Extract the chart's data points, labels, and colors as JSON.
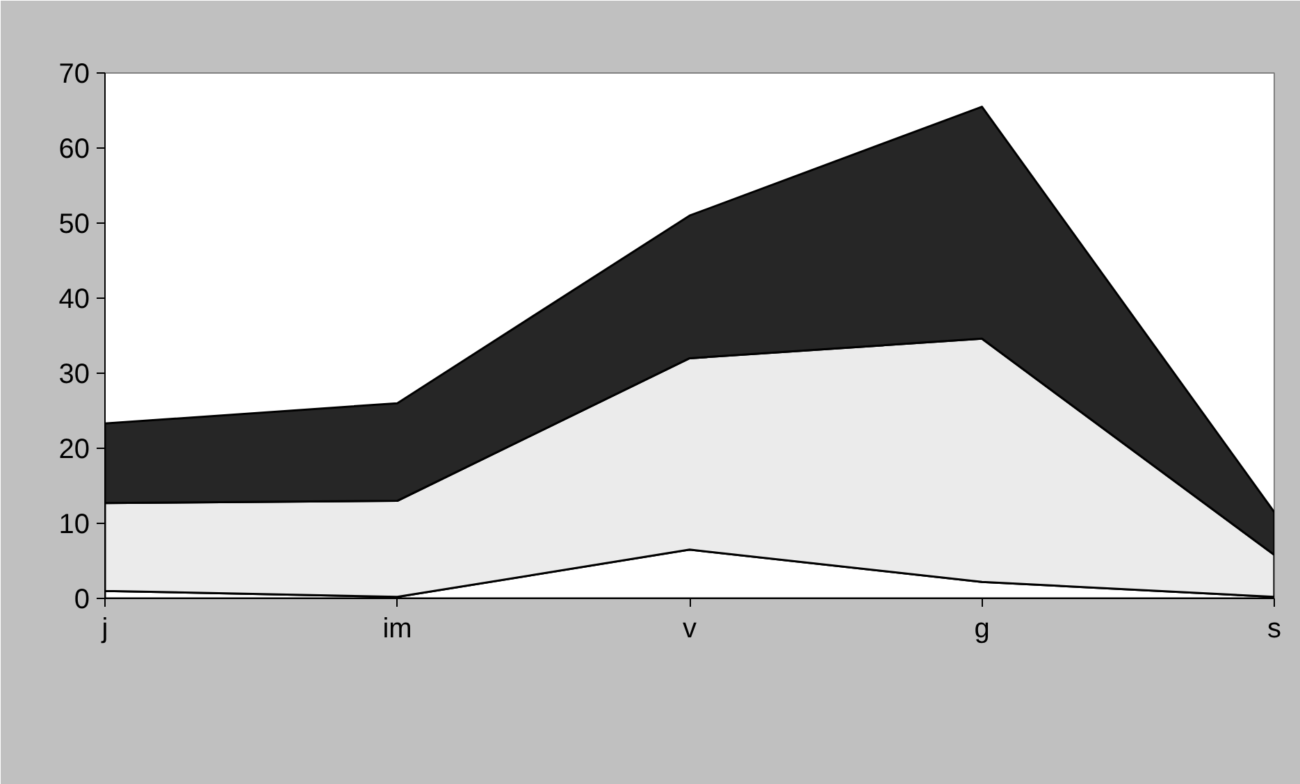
{
  "chart_data": {
    "type": "area",
    "stacked": true,
    "categories": [
      "j",
      "im",
      "v",
      "g",
      "s"
    ],
    "series": [
      {
        "color": "#ffffff",
        "values": [
          1.0,
          0.2,
          6.5,
          2.2,
          0.2
        ]
      },
      {
        "color": "#ebebeb",
        "values": [
          11.7,
          12.8,
          25.5,
          32.4,
          5.6
        ]
      },
      {
        "color": "#262626",
        "values": [
          10.6,
          13.0,
          19.0,
          30.9,
          5.7
        ]
      }
    ],
    "ylim": [
      0,
      70
    ],
    "yticks": [
      0,
      10,
      20,
      30,
      40,
      50,
      60,
      70
    ]
  }
}
